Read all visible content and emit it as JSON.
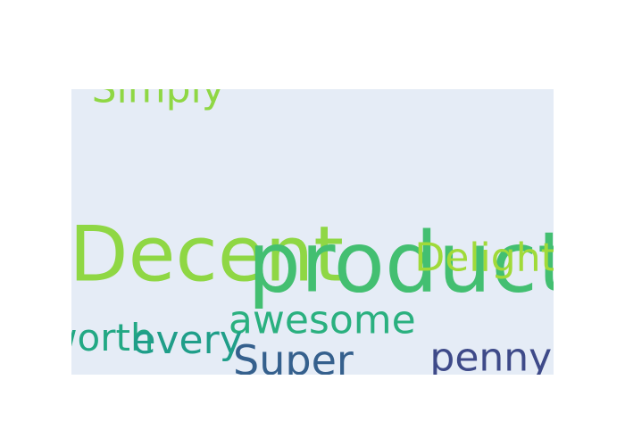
{
  "chart_data": {
    "type": "scatter",
    "mode": "text",
    "xlim": [
      0,
      1
    ],
    "ylim": [
      0,
      1
    ],
    "grid": false,
    "colors": {
      "plot_background": "#e5ecf6",
      "paper_background": "#ffffff"
    },
    "words": [
      {
        "text": "Simply",
        "x": 0.18,
        "y": 1.0,
        "size": 44,
        "color": "#8fd744"
      },
      {
        "text": "Decent",
        "x": 0.28,
        "y": 0.42,
        "size": 86,
        "color": "#8fd744"
      },
      {
        "text": "product",
        "x": 0.7,
        "y": 0.39,
        "size": 94,
        "color": "#43bf71"
      },
      {
        "text": "Delightful",
        "x": 0.91,
        "y": 0.41,
        "size": 44,
        "color": "#a0da39"
      },
      {
        "text": "awesome",
        "x": 0.52,
        "y": 0.19,
        "size": 44,
        "color": "#2ab07f"
      },
      {
        "text": "worth",
        "x": 0.06,
        "y": 0.13,
        "size": 42,
        "color": "#22a884"
      },
      {
        "text": "every",
        "x": 0.24,
        "y": 0.12,
        "size": 44,
        "color": "#1f9e89"
      },
      {
        "text": "Super",
        "x": 0.46,
        "y": 0.05,
        "size": 46,
        "color": "#35608d"
      },
      {
        "text": "penny",
        "x": 0.87,
        "y": 0.06,
        "size": 44,
        "color": "#3e4a89"
      }
    ]
  }
}
